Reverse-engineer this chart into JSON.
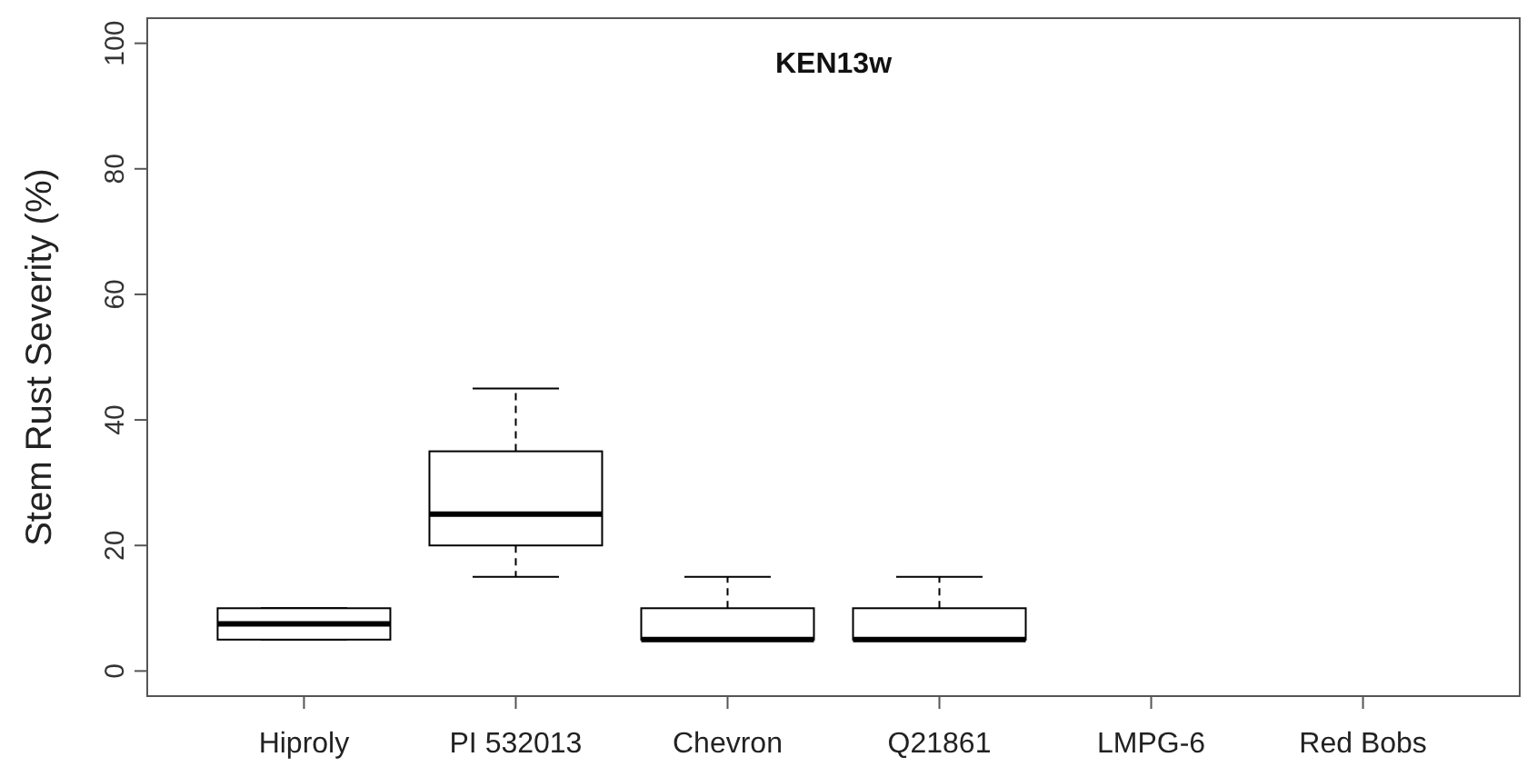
{
  "chart_data": {
    "type": "box",
    "title": "KEN13w",
    "ylabel": "Stem Rust Severity (%)",
    "categories": [
      "Hiproly",
      "PI 532013",
      "Chevron",
      "Q21861",
      "LMPG-6",
      "Red Bobs"
    ],
    "boxes": [
      {
        "low": 5,
        "q1": 5,
        "median": 7.5,
        "q3": 10,
        "high": 10
      },
      {
        "low": 15,
        "q1": 20,
        "median": 25,
        "q3": 35,
        "high": 45
      },
      {
        "low": 5,
        "q1": 5,
        "median": 5,
        "q3": 10,
        "high": 15
      },
      {
        "low": 5,
        "q1": 5,
        "median": 5,
        "q3": 10,
        "high": 15
      },
      null,
      null
    ],
    "color": "#000000",
    "ylim": [
      -4,
      104
    ],
    "yticks": [
      0,
      20,
      40,
      60,
      80,
      100
    ],
    "grid": false
  }
}
